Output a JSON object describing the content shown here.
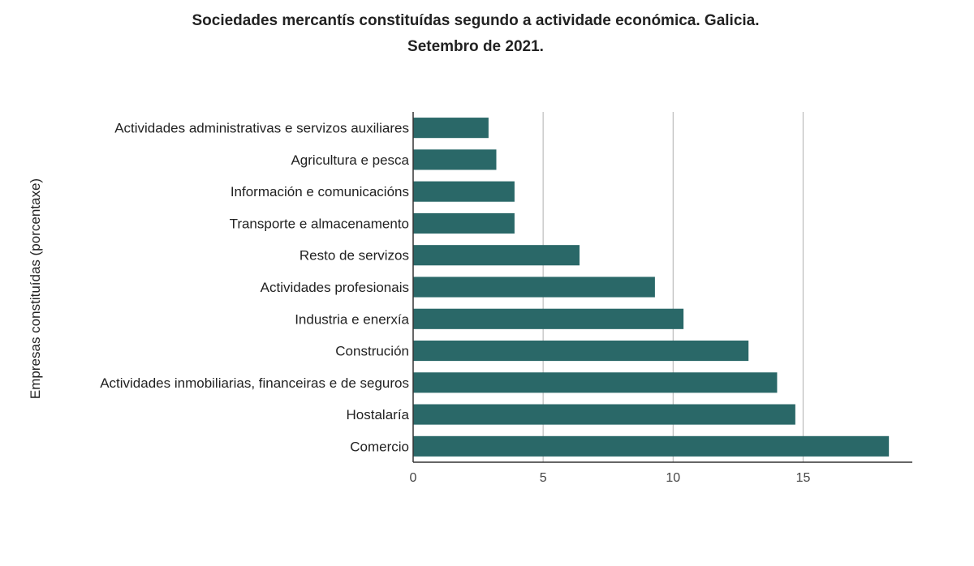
{
  "chart_data": {
    "type": "bar",
    "orientation": "horizontal",
    "title": "Sociedades mercantís constituídas segundo a actividade económica. Galicia.",
    "subtitle": "Setembro de 2021.",
    "ylabel": "Empresas constituídas (porcentaxe)",
    "xlabel": "",
    "categories": [
      "Actividades administrativas e servizos auxiliares",
      "Agricultura e pesca",
      "Información e comunicacións",
      "Transporte e almacenamento",
      "Resto de servizos",
      "Actividades profesionais",
      "Industria e enerxía",
      "Construción",
      "Actividades inmobiliarias, financeiras e de seguros",
      "Hostalaría",
      "Comercio"
    ],
    "values": [
      2.9,
      3.2,
      3.9,
      3.9,
      6.4,
      9.3,
      10.4,
      12.9,
      14.0,
      14.7,
      18.3
    ],
    "xlim": [
      0,
      19.2
    ],
    "xticks": [
      "0",
      "5",
      "10",
      "15"
    ],
    "grid": true,
    "bar_color": "#2a6868"
  }
}
